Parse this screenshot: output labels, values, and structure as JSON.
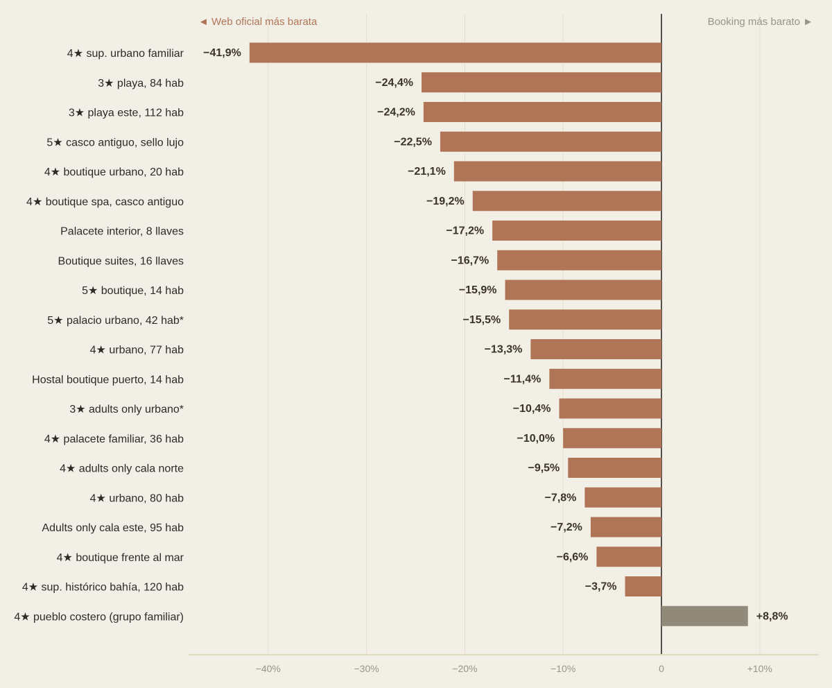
{
  "chart_data": {
    "type": "bar",
    "orientation": "horizontal",
    "hint_left": "◄  Web oficial más barata",
    "hint_right": "Booking más barato  ►",
    "xlim": [
      -0.48,
      0.16
    ],
    "grid": true,
    "colors": {
      "negative": "#b07556",
      "positive": "#918a7a",
      "zero_line": "#55504a",
      "grid": "#e6dfc9",
      "axis": "#e2d8c0"
    },
    "ticks": [
      {
        "value": -0.4,
        "label": "−40%"
      },
      {
        "value": -0.3,
        "label": "−30%"
      },
      {
        "value": -0.2,
        "label": "−20%"
      },
      {
        "value": -0.1,
        "label": "−10%"
      },
      {
        "value": 0,
        "label": "0"
      },
      {
        "value": 0.1,
        "label": "+10%"
      }
    ],
    "categories": [
      "4★ sup. urbano familiar",
      "3★ playa, 84 hab",
      "3★ playa este, 112 hab",
      "5★ casco antiguo, sello lujo",
      "4★ boutique urbano, 20 hab",
      "4★ boutique spa, casco antiguo",
      "Palacete interior, 8 llaves",
      "Boutique suites, 16 llaves",
      "5★ boutique, 14 hab",
      "5★ palacio urbano, 42 hab*",
      "4★ urbano, 77 hab",
      "Hostal boutique puerto, 14 hab",
      "3★ adults only urbano*",
      "4★ palacete familiar, 36 hab",
      "4★ adults only cala norte",
      "4★ urbano, 80 hab",
      "Adults only cala este, 95 hab",
      "4★ boutique frente al mar",
      "4★ sup. histórico bahía, 120 hab",
      "4★ pueblo costero (grupo familiar)"
    ],
    "values": [
      -0.419,
      -0.244,
      -0.242,
      -0.225,
      -0.211,
      -0.192,
      -0.172,
      -0.167,
      -0.159,
      -0.155,
      -0.133,
      -0.114,
      -0.104,
      -0.1,
      -0.095,
      -0.078,
      -0.072,
      -0.066,
      -0.037,
      0.088
    ],
    "value_labels": [
      "−41,9%",
      "−24,4%",
      "−24,2%",
      "−22,5%",
      "−21,1%",
      "−19,2%",
      "−17,2%",
      "−16,7%",
      "−15,9%",
      "−15,5%",
      "−13,3%",
      "−11,4%",
      "−10,4%",
      "−10,0%",
      "−9,5%",
      "−7,8%",
      "−7,2%",
      "−6,6%",
      "−3,7%",
      "+8,8%"
    ]
  }
}
